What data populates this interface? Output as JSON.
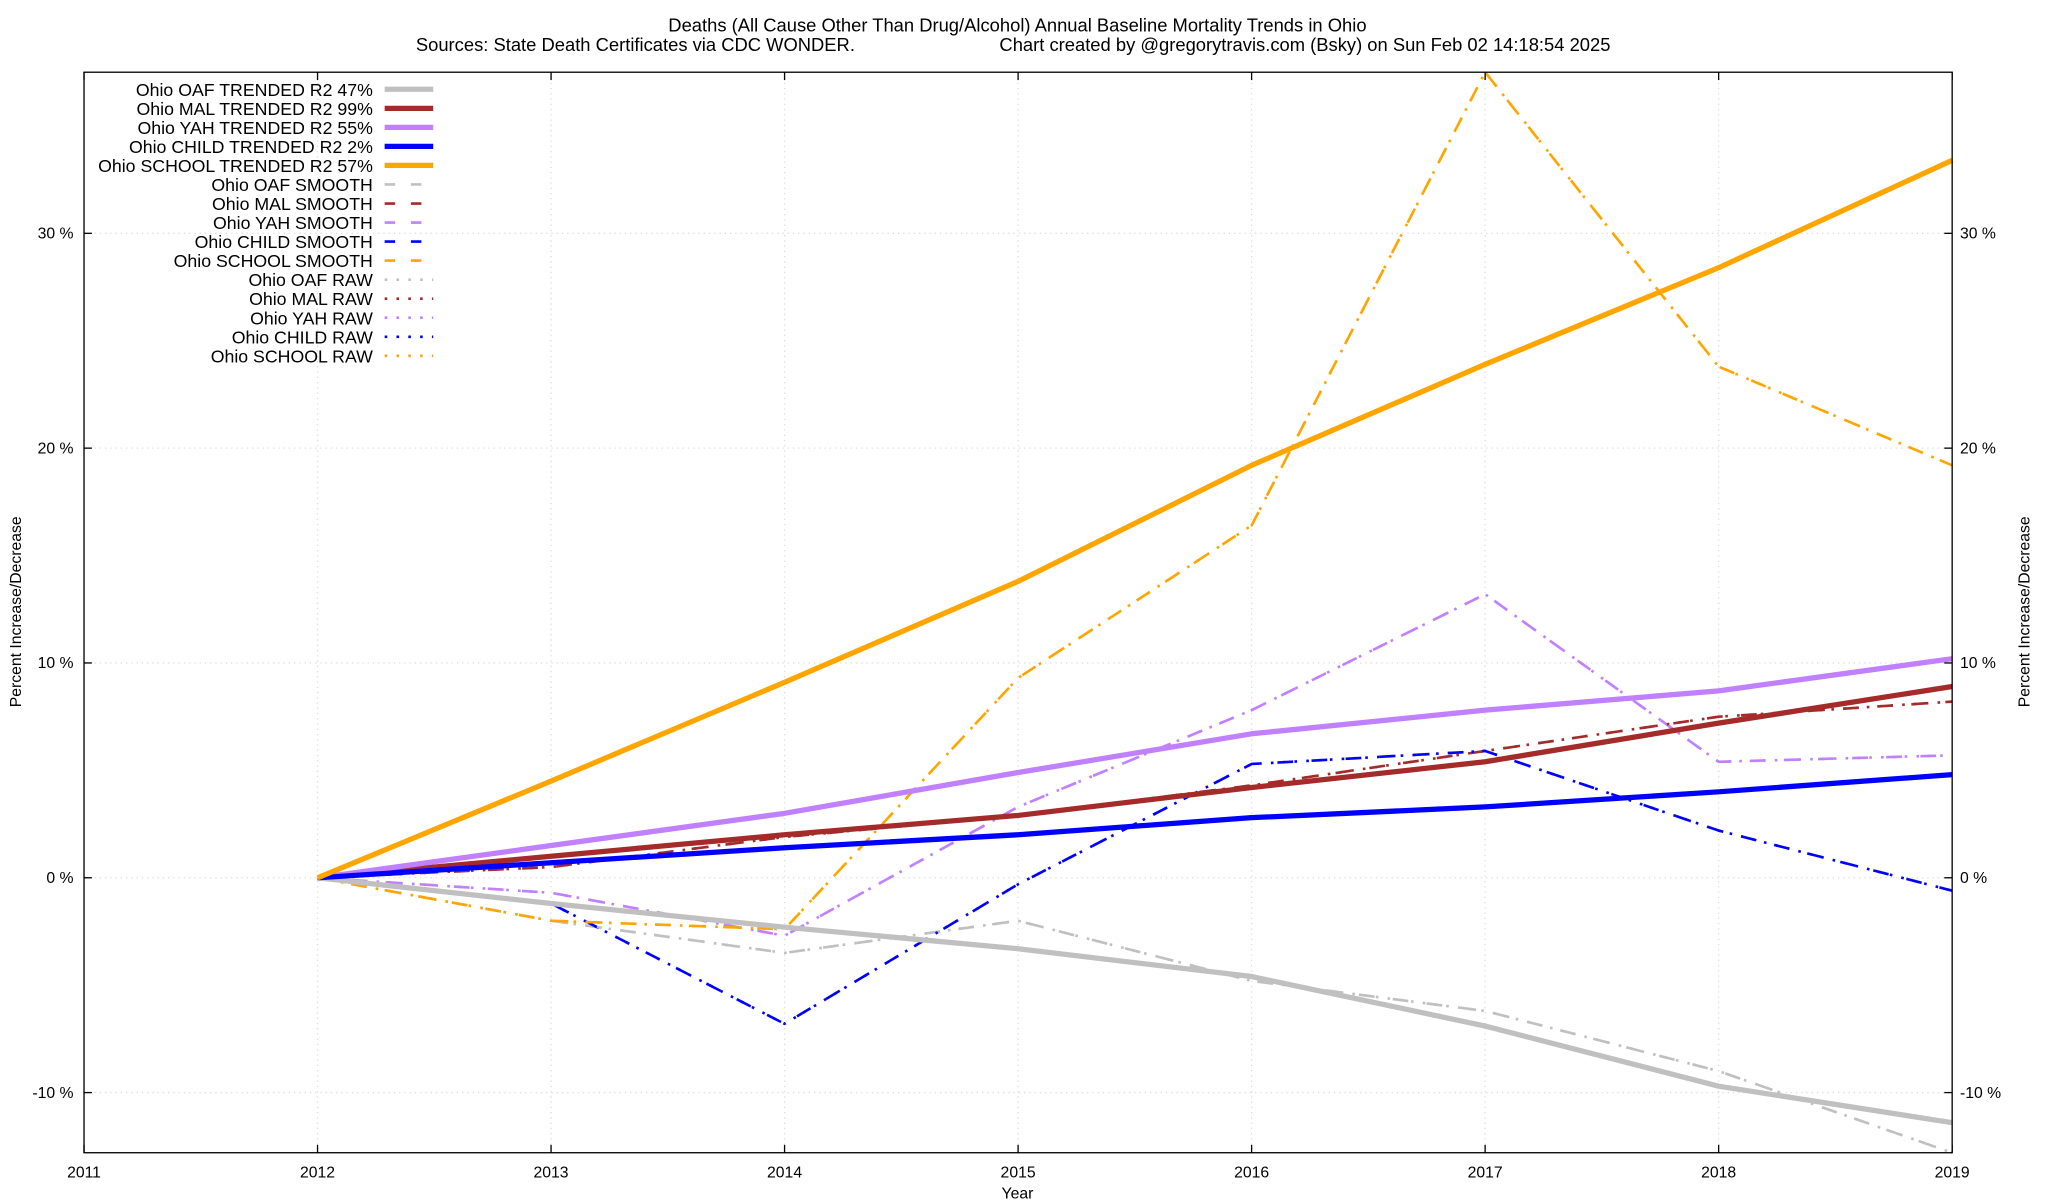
{
  "chart_data": {
    "type": "line",
    "title": "Deaths (All Cause Other Than Drug/Alcohol)  Annual Baseline Mortality Trends in Ohio",
    "subtitle_left": "Sources: State Death Certificates via CDC WONDER.",
    "subtitle_right": "Chart created by @gregorytravis.com (Bsky) on Sun Feb 02 14:18:54 2025",
    "xlabel": "Year",
    "ylabel": "Percent Increase/Decrease",
    "y2label": "Percent Increase/Decrease",
    "xlim": [
      2011,
      2019
    ],
    "ylim": [
      -12.8,
      37.5
    ],
    "x_ticks": [
      "2011",
      "2012",
      "2013",
      "2014",
      "2015",
      "2016",
      "2017",
      "2018",
      "2019"
    ],
    "y_ticks": [
      {
        "value": -10,
        "label": "-10 %"
      },
      {
        "value": 0,
        "label": "0 %"
      },
      {
        "value": 10,
        "label": "10 %"
      },
      {
        "value": 20,
        "label": "20 %"
      },
      {
        "value": 30,
        "label": "30 %"
      }
    ],
    "grid": true,
    "legend_position": "top-left",
    "x": [
      2012,
      2013,
      2014,
      2015,
      2016,
      2017,
      2018,
      2019
    ],
    "series": [
      {
        "name": "Ohio OAF TRENDED R2  47%",
        "style": "solid",
        "color": "#c0c0c0",
        "values": [
          0,
          -1.2,
          -2.3,
          -3.3,
          -4.6,
          -6.9,
          -9.7,
          -11.4
        ]
      },
      {
        "name": "Ohio MAL TRENDED R2  99%",
        "style": "solid",
        "color": "#a52a2a",
        "values": [
          0,
          1.0,
          2.0,
          2.9,
          4.2,
          5.4,
          7.2,
          8.9
        ]
      },
      {
        "name": "Ohio YAH TRENDED R2  55%",
        "style": "solid",
        "color": "#c080ff",
        "values": [
          0,
          1.5,
          3.0,
          4.9,
          6.7,
          7.8,
          8.7,
          10.2
        ]
      },
      {
        "name": "Ohio CHILD TRENDED R2   2%",
        "style": "solid",
        "color": "#0000ff",
        "values": [
          0,
          0.7,
          1.4,
          2.0,
          2.8,
          3.3,
          4.0,
          4.8
        ]
      },
      {
        "name": "Ohio SCHOOL TRENDED R2  57%",
        "style": "solid",
        "color": "#ffa500",
        "values": [
          0,
          4.5,
          9.1,
          13.8,
          19.2,
          23.9,
          28.4,
          33.4
        ]
      },
      {
        "name": "Ohio OAF SMOOTH",
        "style": "dashed",
        "color": "#c0c0c0",
        "values": [
          0,
          -2.0,
          -3.5,
          -2.0,
          -4.8,
          -6.2,
          -9.0,
          -12.8
        ]
      },
      {
        "name": "Ohio MAL SMOOTH",
        "style": "dashed",
        "color": "#a52a2a",
        "values": [
          0,
          0.5,
          1.9,
          2.9,
          4.3,
          5.9,
          7.5,
          8.2
        ]
      },
      {
        "name": "Ohio YAH SMOOTH",
        "style": "dashed",
        "color": "#c080ff",
        "values": [
          0,
          -0.7,
          -2.7,
          3.3,
          7.8,
          13.2,
          5.4,
          5.7
        ]
      },
      {
        "name": "Ohio CHILD SMOOTH",
        "style": "dashed",
        "color": "#0000ff",
        "values": [
          0,
          -1.2,
          -6.8,
          -0.3,
          5.3,
          5.9,
          2.2,
          -0.6
        ]
      },
      {
        "name": "Ohio SCHOOL SMOOTH",
        "style": "dashed",
        "color": "#ffa500",
        "values": [
          0,
          -2.0,
          -2.4,
          9.3,
          16.4,
          37.5,
          23.8,
          19.2
        ]
      },
      {
        "name": "Ohio OAF RAW",
        "style": "dotted",
        "color": "#c0c0c0",
        "values": [
          0,
          -2.0,
          -3.5,
          -2.0,
          -4.8,
          -6.2,
          -9.0,
          -12.8
        ]
      },
      {
        "name": "Ohio MAL RAW",
        "style": "dotted",
        "color": "#a52a2a",
        "values": [
          0,
          0.5,
          1.9,
          2.9,
          4.3,
          5.9,
          7.5,
          8.2
        ]
      },
      {
        "name": "Ohio YAH RAW",
        "style": "dotted",
        "color": "#c080ff",
        "values": [
          0,
          -0.7,
          -2.7,
          3.3,
          7.8,
          13.2,
          5.4,
          5.7
        ]
      },
      {
        "name": "Ohio CHILD RAW",
        "style": "dotted",
        "color": "#0000ff",
        "values": [
          0,
          -1.2,
          -6.8,
          -0.3,
          5.3,
          5.9,
          2.2,
          -0.6
        ]
      },
      {
        "name": "Ohio SCHOOL RAW",
        "style": "dotted",
        "color": "#ffa500",
        "values": [
          0,
          -2.0,
          -2.4,
          9.3,
          16.4,
          37.5,
          23.8,
          19.2
        ]
      }
    ]
  }
}
